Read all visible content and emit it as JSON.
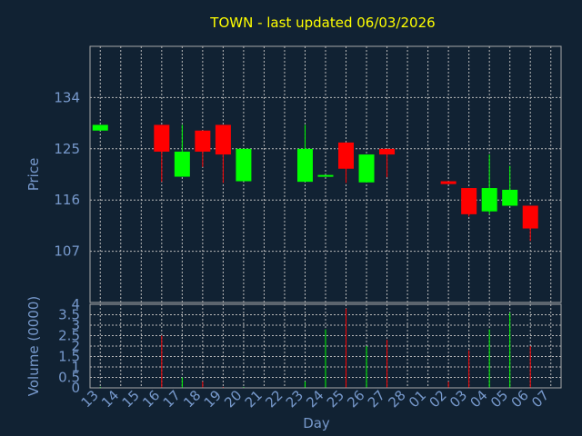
{
  "chart_data": [
    {
      "type": "candlestick",
      "title": "TOWN - last updated 06/03/2026",
      "ylabel": "Price",
      "xlabel": "Day",
      "ylim": [
        98,
        143
      ],
      "y_ticks": [
        107,
        116,
        125,
        134
      ],
      "x_tick_labels": [
        "13",
        "14",
        "15",
        "16",
        "17",
        "18",
        "19",
        "20",
        "21",
        "22",
        "23",
        "24",
        "25",
        "26",
        "27",
        "28",
        "01",
        "02",
        "03",
        "04",
        "05",
        "06",
        "07"
      ],
      "up_color": "#00ff00",
      "down_color": "#ff0000",
      "grid": true,
      "candles": [
        {
          "day": "13",
          "open": 128.2,
          "close": 129.2,
          "high": 129.2,
          "low": 128.2,
          "dir": "up"
        },
        {
          "day": "16",
          "open": 129.2,
          "close": 124.5,
          "high": 129.2,
          "low": 119.2,
          "dir": "down"
        },
        {
          "day": "17",
          "open": 120.1,
          "close": 124.5,
          "high": 129.2,
          "low": 120.1,
          "dir": "up"
        },
        {
          "day": "18",
          "open": 128.2,
          "close": 124.5,
          "high": 128.2,
          "low": 121.8,
          "dir": "down"
        },
        {
          "day": "19",
          "open": 129.2,
          "close": 124.0,
          "high": 129.2,
          "low": 119.0,
          "dir": "down"
        },
        {
          "day": "20",
          "open": 119.3,
          "close": 125.0,
          "high": 125.0,
          "low": 119.3,
          "dir": "up"
        },
        {
          "day": "23",
          "open": 119.2,
          "close": 125.0,
          "high": 129.2,
          "low": 119.2,
          "dir": "up"
        },
        {
          "day": "24",
          "open": 120.1,
          "close": 120.4,
          "high": 120.4,
          "low": 120.1,
          "dir": "up"
        },
        {
          "day": "25",
          "open": 126.1,
          "close": 121.5,
          "high": 126.1,
          "low": 119.0,
          "dir": "down"
        },
        {
          "day": "26",
          "open": 119.1,
          "close": 124.0,
          "high": 124.0,
          "low": 119.1,
          "dir": "up"
        },
        {
          "day": "27",
          "open": 125.0,
          "close": 124.0,
          "high": 125.0,
          "low": 120.0,
          "dir": "down"
        },
        {
          "day": "02",
          "open": 119.3,
          "close": 118.8,
          "high": 119.3,
          "low": 118.8,
          "dir": "down"
        },
        {
          "day": "03",
          "open": 118.1,
          "close": 113.5,
          "high": 118.1,
          "low": 113.1,
          "dir": "down"
        },
        {
          "day": "04",
          "open": 114.0,
          "close": 118.1,
          "high": 124.0,
          "low": 113.5,
          "dir": "up"
        },
        {
          "day": "05",
          "open": 115.0,
          "close": 117.8,
          "high": 122.0,
          "low": 115.0,
          "dir": "up"
        },
        {
          "day": "06",
          "open": 115.0,
          "close": 111.0,
          "high": 115.0,
          "low": 108.8,
          "dir": "down"
        }
      ]
    },
    {
      "type": "bar",
      "ylabel": "Volume (0000)",
      "ylim": [
        0,
        4
      ],
      "y_ticks": [
        0,
        0.5,
        1,
        1.5,
        2,
        2.5,
        3,
        3.5,
        4
      ],
      "y_tick_labels": [
        "0",
        "0.5",
        "1",
        "1.5",
        "2",
        "2.5",
        "3",
        "3.5",
        "4"
      ],
      "volumes": [
        {
          "day": "13",
          "value": 0.05,
          "dir": "up"
        },
        {
          "day": "16",
          "value": 2.5,
          "dir": "down"
        },
        {
          "day": "17",
          "value": 0.5,
          "dir": "up"
        },
        {
          "day": "18",
          "value": 0.3,
          "dir": "down"
        },
        {
          "day": "19",
          "value": 0.05,
          "dir": "down"
        },
        {
          "day": "20",
          "value": 0.05,
          "dir": "up"
        },
        {
          "day": "23",
          "value": 0.3,
          "dir": "up"
        },
        {
          "day": "24",
          "value": 2.8,
          "dir": "up"
        },
        {
          "day": "25",
          "value": 3.8,
          "dir": "down"
        },
        {
          "day": "26",
          "value": 2.0,
          "dir": "up"
        },
        {
          "day": "27",
          "value": 2.3,
          "dir": "down"
        },
        {
          "day": "02",
          "value": 0.3,
          "dir": "down"
        },
        {
          "day": "03",
          "value": 1.8,
          "dir": "down"
        },
        {
          "day": "04",
          "value": 2.8,
          "dir": "up"
        },
        {
          "day": "05",
          "value": 3.6,
          "dir": "up"
        },
        {
          "day": "06",
          "value": 2.0,
          "dir": "down"
        }
      ]
    }
  ]
}
